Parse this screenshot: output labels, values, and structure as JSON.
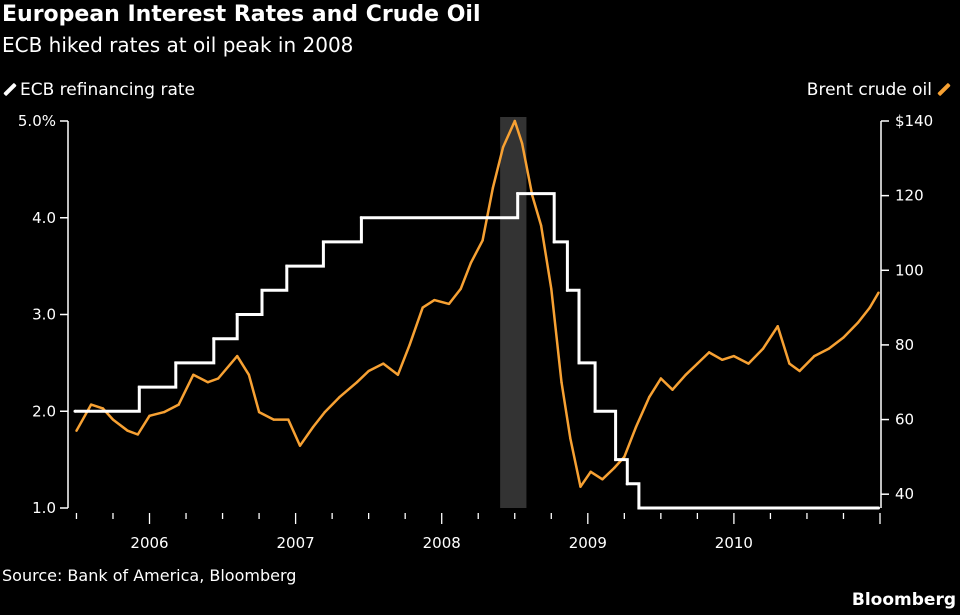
{
  "chart_data": {
    "type": "line",
    "title": "European Interest Rates and Crude Oil",
    "subtitle": "ECB hiked rates at oil peak in 2008",
    "source": "Source: Bank of America, Bloomberg",
    "brand": "Bloomberg",
    "xlim": [
      2005.49,
      2011.0
    ],
    "x_ticks": [
      "2006",
      "2007",
      "2008",
      "2009",
      "2010"
    ],
    "left_axis": {
      "ylim": [
        1.0,
        5.0
      ],
      "tick_labels": [
        "5.0%",
        "4.0",
        "3.0",
        "2.0",
        "1.0"
      ],
      "ticks": [
        5,
        4,
        3,
        2,
        1
      ]
    },
    "right_axis": {
      "ylim": [
        36.3,
        140
      ],
      "tick_labels": [
        "$140",
        "120",
        "100",
        "80",
        "60",
        "40"
      ],
      "ticks": [
        140,
        120,
        100,
        80,
        60,
        40
      ]
    },
    "shaded_region": {
      "x": [
        2008.4,
        2008.58
      ],
      "color": "#333333"
    },
    "grid": false,
    "series": [
      {
        "name": "ECB refinancing rate",
        "axis": "left",
        "color": "#ffffff",
        "style": "step",
        "x": [
          2005.49,
          2005.93,
          2006.18,
          2006.44,
          2006.6,
          2006.77,
          2006.94,
          2007.19,
          2007.45,
          2008.52,
          2008.77,
          2008.86,
          2008.94,
          2009.05,
          2009.19,
          2009.27,
          2009.35,
          2010.99
        ],
        "values": [
          2.0,
          2.25,
          2.5,
          2.75,
          3.0,
          3.25,
          3.5,
          3.75,
          4.0,
          4.25,
          3.75,
          3.25,
          2.5,
          2.0,
          1.5,
          1.25,
          1.0,
          1.0
        ]
      },
      {
        "name": "Brent crude oil",
        "axis": "right",
        "color": "#f7a133",
        "style": "line",
        "x": [
          2005.5,
          2005.6,
          2005.68,
          2005.75,
          2005.85,
          2005.92,
          2006.0,
          2006.1,
          2006.2,
          2006.3,
          2006.4,
          2006.47,
          2006.6,
          2006.68,
          2006.75,
          2006.85,
          2006.95,
          2007.03,
          2007.12,
          2007.2,
          2007.3,
          2007.42,
          2007.5,
          2007.6,
          2007.7,
          2007.78,
          2007.87,
          2007.95,
          2008.05,
          2008.13,
          2008.2,
          2008.28,
          2008.35,
          2008.42,
          2008.5,
          2008.55,
          2008.62,
          2008.68,
          2008.75,
          2008.82,
          2008.88,
          2008.95,
          2009.02,
          2009.1,
          2009.18,
          2009.25,
          2009.33,
          2009.42,
          2009.5,
          2009.58,
          2009.67,
          2009.75,
          2009.83,
          2009.92,
          2010.0,
          2010.1,
          2010.2,
          2010.3,
          2010.38,
          2010.45,
          2010.55,
          2010.65,
          2010.75,
          2010.85,
          2010.93,
          2010.99
        ],
        "values": [
          57,
          64,
          63,
          60,
          57,
          56,
          61,
          62,
          64,
          72,
          70,
          71,
          77,
          72,
          62,
          60,
          60,
          53,
          58,
          62,
          66,
          70,
          73,
          75,
          72,
          80,
          90,
          92,
          91,
          95,
          102,
          108,
          122,
          133,
          140,
          134,
          120,
          112,
          95,
          70,
          55,
          42,
          46,
          44,
          47,
          50,
          58,
          66,
          71,
          68,
          72,
          75,
          78,
          76,
          77,
          75,
          79,
          85,
          75,
          73,
          77,
          79,
          82,
          86,
          90,
          94
        ]
      }
    ]
  }
}
